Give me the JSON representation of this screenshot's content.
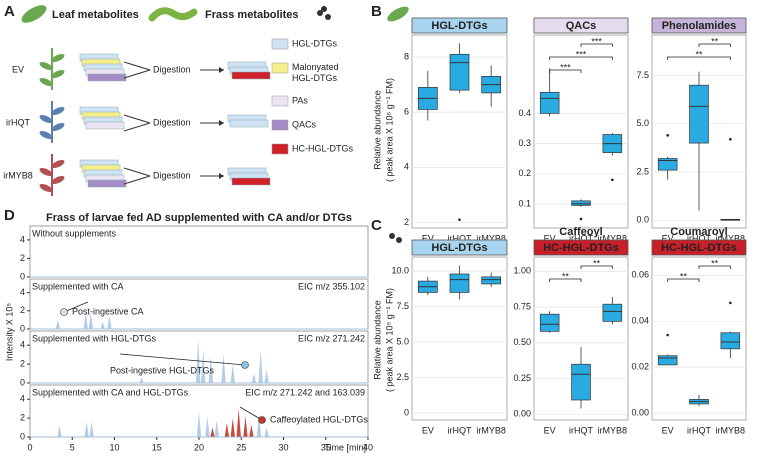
{
  "panel_a": {
    "label": "A",
    "leaf_title": "Leaf metabolites",
    "frass_title": "Frass metabolites",
    "rows": [
      "EV",
      "irHQT",
      "irMYB8"
    ],
    "step": "Digestion",
    "legend": [
      {
        "name": "HGL-DTGs",
        "color": "#cfe3f5"
      },
      {
        "name": "Malonyated HGL-DTGs",
        "color": "#f5ee8a"
      },
      {
        "name": "PAs",
        "color": "#ece4f2"
      },
      {
        "name": "QACs",
        "color": "#a58cc7"
      },
      {
        "name": "HC-HGL-DTGs",
        "color": "#d0202a"
      }
    ]
  },
  "panel_b": {
    "label": "B",
    "y_label": [
      "Relative abundance",
      "( peak area X 10⁶ g⁻¹ FM)"
    ],
    "charts": [
      {
        "type": "box",
        "header": "HGL-DTGs",
        "header_color": "#a8d4f0",
        "header_text_color": "#111",
        "categories": [
          "EV",
          "irHQT",
          "irMYB8"
        ],
        "color": "#29abe2",
        "ylim": [
          1.8,
          8.8
        ],
        "yticks": [
          2,
          4,
          6,
          8
        ],
        "boxes": [
          {
            "low": 5.7,
            "q1": 6.1,
            "median": 6.5,
            "q3": 6.9,
            "high": 7.5,
            "outliers": []
          },
          {
            "low": 6.7,
            "q1": 6.8,
            "median": 7.8,
            "q3": 8.1,
            "high": 8.5,
            "outliers": [
              2.1
            ]
          },
          {
            "low": 6.2,
            "q1": 6.7,
            "median": 7.0,
            "q3": 7.3,
            "high": 7.7,
            "outliers": []
          }
        ],
        "significance": []
      },
      {
        "type": "box",
        "header": "QACs",
        "header_color": "#e6dcef",
        "header_text_color": "#111",
        "categories": [
          "EV",
          "irHQT",
          "irMYB8"
        ],
        "color": "#29abe2",
        "ylim": [
          0.02,
          0.66
        ],
        "yticks": [
          0.1,
          0.2,
          0.3,
          0.4
        ],
        "boxes": [
          {
            "low": 0.39,
            "q1": 0.4,
            "median": 0.45,
            "q3": 0.47,
            "high": 0.55,
            "outliers": []
          },
          {
            "low": 0.09,
            "q1": 0.095,
            "median": 0.1,
            "q3": 0.11,
            "high": 0.115,
            "outliers": [
              0.05
            ]
          },
          {
            "low": 0.26,
            "q1": 0.27,
            "median": 0.3,
            "q3": 0.33,
            "high": 0.335,
            "outliers": [
              0.18
            ]
          }
        ],
        "significance": [
          {
            "label": "***",
            "from": "irHQT",
            "to": "irMYB8"
          },
          {
            "label": "***",
            "from": "EV",
            "to": "irMYB8"
          },
          {
            "label": "***",
            "from": "EV",
            "to": "irHQT"
          }
        ]
      },
      {
        "type": "box",
        "header": "Phenolamides",
        "header_color": "#c6b3d9",
        "header_text_color": "#111",
        "categories": [
          "EV",
          "irHQT",
          "irMYB8"
        ],
        "color": "#29abe2",
        "ylim": [
          -0.4,
          9.6
        ],
        "yticks": [
          {
            "value": 0,
            "label": "0.0"
          },
          2.5,
          {
            "value": 5,
            "label": "5.0"
          },
          7.5
        ],
        "boxes": [
          {
            "low": 2.1,
            "q1": 2.6,
            "median": 3.1,
            "q3": 3.2,
            "high": 3.3,
            "outliers": [
              4.4
            ]
          },
          {
            "low": 0.5,
            "q1": 4.0,
            "median": 5.9,
            "q3": 7.0,
            "high": 7.7,
            "outliers": []
          },
          {
            "low": 0,
            "q1": 0,
            "median": 0.02,
            "q3": 0.05,
            "high": 0.08,
            "outliers": [
              4.2
            ]
          }
        ],
        "significance": [
          {
            "label": "**",
            "from": "irHQT",
            "to": "irMYB8"
          },
          {
            "label": "**",
            "from": "EV",
            "to": "irMYB8"
          }
        ]
      }
    ]
  },
  "panel_c": {
    "label": "C",
    "y_label": [
      "Relative abundance",
      "( peak area X 10⁵ g⁻¹ FM)"
    ],
    "charts": [
      {
        "type": "box",
        "header": "HGL-DTGs",
        "header_color": "#a8d4f0",
        "header_text_color": "#111",
        "categories": [
          "EV",
          "irHQT",
          "irMYB8"
        ],
        "color": "#29abe2",
        "ylim": [
          -0.5,
          11
        ],
        "yticks": [
          0,
          2.5,
          {
            "value": 5,
            "label": "5.0"
          },
          7.5,
          {
            "value": 10,
            "label": "10.0"
          }
        ],
        "boxes": [
          {
            "low": 8.3,
            "q1": 8.5,
            "median": 8.9,
            "q3": 9.3,
            "high": 9.6,
            "outliers": []
          },
          {
            "low": 8.0,
            "q1": 8.5,
            "median": 9.4,
            "q3": 9.8,
            "high": 10.4,
            "outliers": []
          },
          {
            "low": 8.9,
            "q1": 9.1,
            "median": 9.4,
            "q3": 9.6,
            "high": 9.9,
            "outliers": []
          }
        ],
        "significance": []
      },
      {
        "type": "box",
        "title": "Caffeoyl",
        "header": "HC-HGL-DTGs",
        "header_color": "#c8202a",
        "header_text_color": "#fff",
        "categories": [
          "EV",
          "irHQT",
          "irMYB8"
        ],
        "color": "#29abe2",
        "ylim": [
          -0.04,
          1.1
        ],
        "yticks": [
          {
            "value": 0,
            "label": "0.00"
          },
          0.25,
          {
            "value": 0.5,
            "label": "0.50"
          },
          0.75,
          {
            "value": 1,
            "label": "1.00"
          }
        ],
        "boxes": [
          {
            "low": 0.57,
            "q1": 0.58,
            "median": 0.63,
            "q3": 0.7,
            "high": 0.72,
            "outliers": []
          },
          {
            "low": 0.04,
            "q1": 0.1,
            "median": 0.28,
            "q3": 0.35,
            "high": 0.47,
            "outliers": []
          },
          {
            "low": 0.63,
            "q1": 0.65,
            "median": 0.72,
            "q3": 0.77,
            "high": 0.82,
            "outliers": []
          }
        ],
        "significance": [
          {
            "label": "**",
            "from": "irHQT",
            "to": "irMYB8"
          },
          {
            "label": "**",
            "from": "EV",
            "to": "irHQT"
          }
        ]
      },
      {
        "type": "box",
        "title": "Coumaroyl",
        "header": "HC-HGL-DTGs",
        "header_color": "#c8202a",
        "header_text_color": "#fff",
        "categories": [
          "EV",
          "irHQT",
          "irMYB8"
        ],
        "color": "#29abe2",
        "ylim": [
          -0.003,
          0.068
        ],
        "yticks": [
          {
            "value": 0,
            "label": "0.00"
          },
          0.02,
          0.04,
          0.06
        ],
        "boxes": [
          {
            "low": 0.021,
            "q1": 0.021,
            "median": 0.024,
            "q3": 0.025,
            "high": 0.0255,
            "outliers": [
              0.034
            ]
          },
          {
            "low": 0.003,
            "q1": 0.004,
            "median": 0.005,
            "q3": 0.006,
            "high": 0.008,
            "outliers": []
          },
          {
            "low": 0.024,
            "q1": 0.028,
            "median": 0.031,
            "q3": 0.035,
            "high": 0.0355,
            "outliers": [
              0.048
            ]
          }
        ],
        "significance": [
          {
            "label": "**",
            "from": "irHQT",
            "to": "irMYB8"
          },
          {
            "label": "**",
            "from": "EV",
            "to": "irHQT"
          }
        ]
      }
    ]
  },
  "panel_d": {
    "label": "D",
    "type": "chromatogram",
    "title": "Frass of larvae fed AD supplemented with CA and/or DTGs",
    "x_label": "Time [min]",
    "y_label": "Intensity X 10⁵",
    "xlim": [
      0,
      40
    ],
    "xticks": [
      0,
      5,
      10,
      15,
      20,
      25,
      30,
      35,
      40
    ],
    "ylim": [
      0,
      5.5
    ],
    "yticks": [
      0,
      2,
      4
    ],
    "strips": [
      {
        "label": "Without supplements",
        "series": []
      },
      {
        "label": "Supplemented with CA",
        "eic": "EIC m/z 355.102",
        "annotation": "Post-ingestive CA",
        "series": [
          {
            "color": "#a9c8e8",
            "peaks": [
              [
                3.3,
                1.0
              ],
              [
                6.6,
                1.8
              ],
              [
                7.2,
                1.7
              ],
              [
                8.6,
                0.8
              ],
              [
                9.4,
                1.4
              ]
            ]
          }
        ]
      },
      {
        "label": "Supplemented with HGL-DTGs",
        "eic": "EIC m/z 271.242",
        "annotation": "Post-ingestive HGL-DTGs",
        "series": [
          {
            "color": "#a9c8e8",
            "peaks": [
              [
                13.2,
                0.6
              ],
              [
                19.9,
                4.6
              ],
              [
                20.5,
                3.4
              ],
              [
                21.4,
                2.8
              ],
              [
                22.9,
                3.0
              ],
              [
                24.0,
                2.0
              ],
              [
                26.5,
                1.0
              ],
              [
                27.3,
                3.4
              ],
              [
                28.0,
                1.4
              ]
            ]
          }
        ]
      },
      {
        "label": "Supplemented with CA and HGL-DTGs",
        "eic": "EIC m/z 271.242 and 163.039",
        "annotation": "Caffeoylated HGL-DTGs",
        "series": [
          {
            "color": "#a9c8e8",
            "peaks": [
              [
                3.5,
                1.2
              ],
              [
                6.7,
                1.6
              ],
              [
                7.3,
                1.6
              ],
              [
                20.0,
                2.6
              ],
              [
                21.0,
                2.2
              ],
              [
                22.1,
                1.8
              ],
              [
                27.1,
                2.6
              ],
              [
                28.0,
                1.0
              ]
            ]
          },
          {
            "color": "#c0392b",
            "peaks": [
              [
                21.6,
                1.0
              ],
              [
                23.3,
                1.5
              ],
              [
                24.0,
                2.0
              ],
              [
                24.7,
                3.0
              ],
              [
                25.5,
                2.2
              ],
              [
                26.2,
                1.3
              ]
            ]
          }
        ]
      }
    ]
  }
}
